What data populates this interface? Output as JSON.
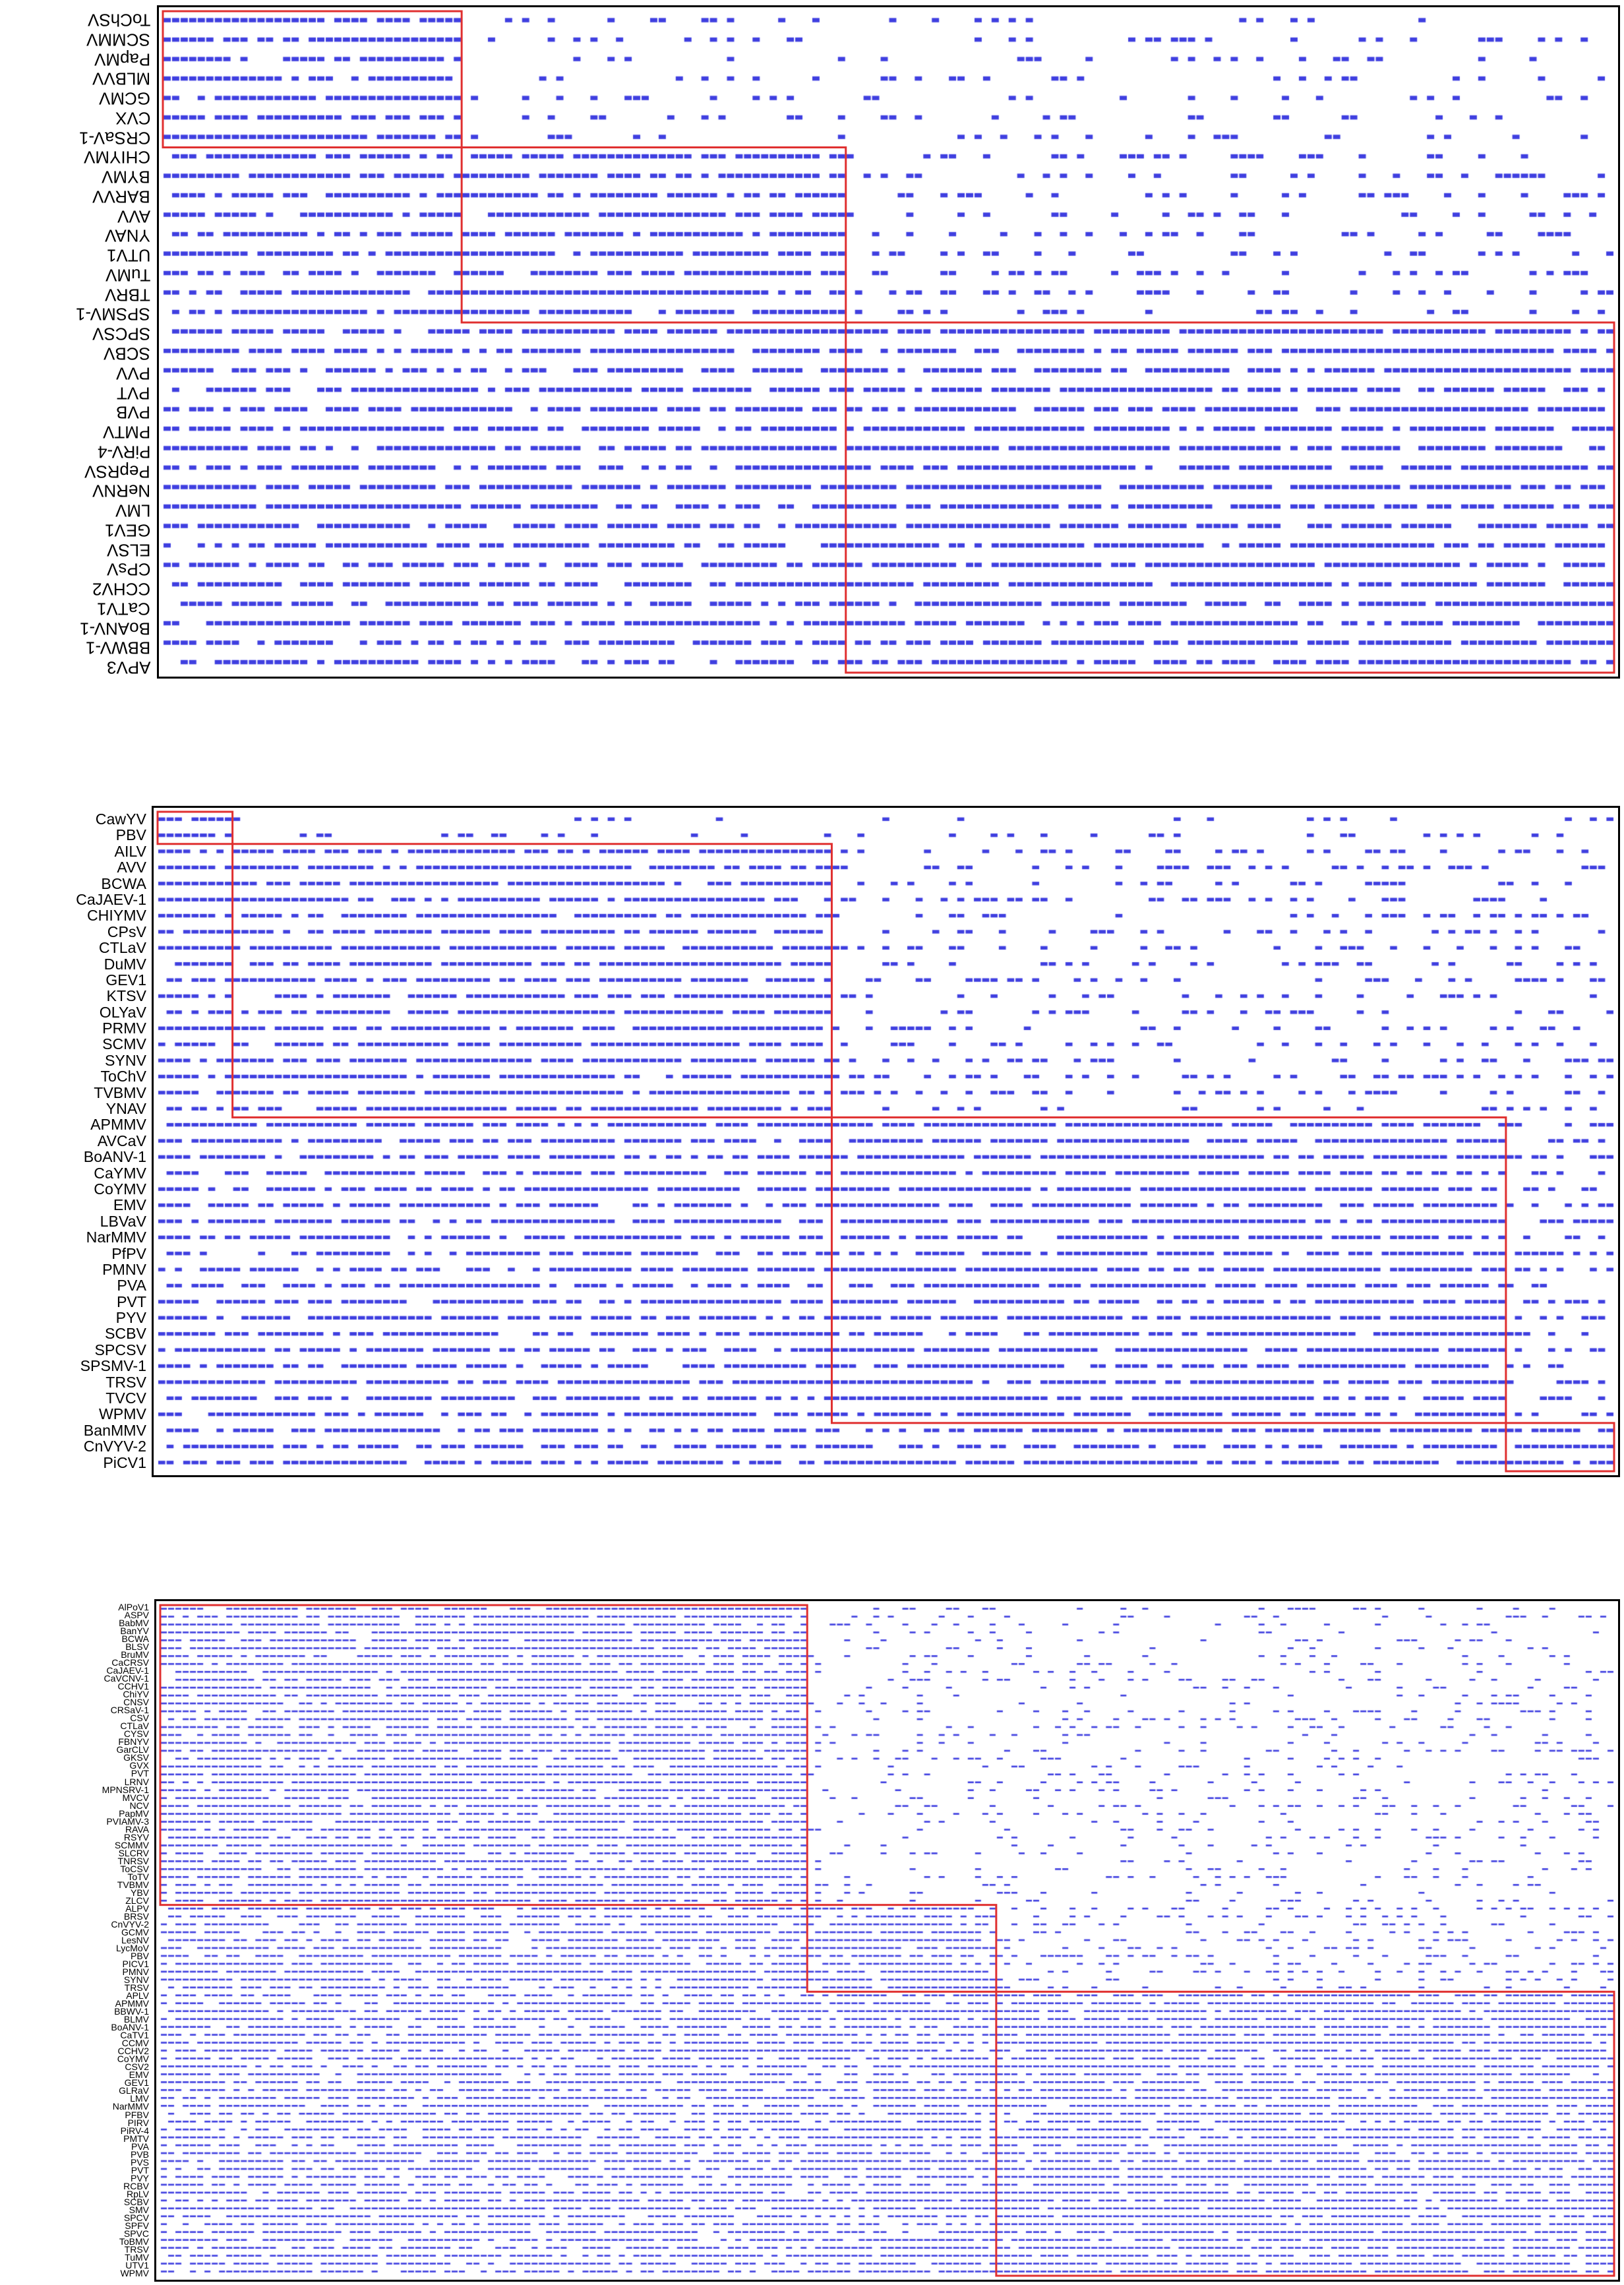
{
  "colors": {
    "mark": "#3f3fe0",
    "box": "#e03030",
    "frame": "#000000"
  },
  "panels": [
    {
      "id": "top",
      "labels_flipped": true,
      "labels": [
        "ToChSV",
        "SCMMV",
        "PapMV",
        "MLBVV",
        "GCMV",
        "CVX",
        "CRSaV-1",
        "CHIYMV",
        "BYMV",
        "BARVV",
        "AVV",
        "YNAV",
        "UTV1",
        "TuMV",
        "TBRV",
        "SPSMV-1",
        "SPCSV",
        "SCBV",
        "PVV",
        "PVT",
        "PVB",
        "PMTV",
        "PiRV-4",
        "PepRSV",
        "NeRNV",
        "LMV",
        "GEV1",
        "ELSV",
        "CPsV",
        "CCHV2",
        "CaTV1",
        "BoANV-1",
        "BBWV-1",
        "APV3"
      ],
      "groups": [
        7,
        9,
        18
      ]
    },
    {
      "id": "middle",
      "labels_flipped": false,
      "labels": [
        "CawYV",
        "PBV",
        "AILV",
        "AVV",
        "BCWA",
        "CaJAEV-1",
        "CHIYMV",
        "CPsV",
        "CTLaV",
        "DuMV",
        "GEV1",
        "KTSV",
        "OLYaV",
        "PRMV",
        "SCMV",
        "SYNV",
        "ToChV",
        "TVBMV",
        "YNAV",
        "APMMV",
        "AVCaV",
        "BoANV-1",
        "CaYMV",
        "CoYMV",
        "EMV",
        "LBVaV",
        "NarMMV",
        "PfPV",
        "PMNV",
        "PVA",
        "PVT",
        "PYV",
        "SCBV",
        "SPCSV",
        "SPSMV-1",
        "TRSV",
        "TVCV",
        "WPMV",
        "BanMMV",
        "CnVYV-2",
        "PiCV1"
      ],
      "groups": [
        2,
        17,
        19,
        3
      ]
    },
    {
      "id": "bottom",
      "labels_flipped": false,
      "labels": [
        "AlPoV1",
        "ASPV",
        "BabMV",
        "BanYV",
        "BCWA",
        "BLSV",
        "BruMV",
        "CaCRSV",
        "CaJAEV-1",
        "CaVCNV-1",
        "CCHV1",
        "ChiYV",
        "CNSV",
        "CRSaV-1",
        "CSV",
        "CTLaV",
        "CYSV",
        "FBNYV",
        "GarCLV",
        "GKSV",
        "GVX",
        "PVT",
        "LRNV",
        "MPNSRV-1",
        "MVCV",
        "NCV",
        "PapMV",
        "PVIAMV-3",
        "RAVA",
        "RSYV",
        "SCMMV",
        "SLCRV",
        "TNRSV",
        "ToCSV",
        "ToTV",
        "TVBMV",
        "YBV",
        "ZLCV",
        "ALPV",
        "BRSV",
        "CnVYV-2",
        "GCMV",
        "LesNV",
        "LycMoV",
        "PBV",
        "PICV1",
        "PMNV",
        "SYNV",
        "TRSV",
        "APLV",
        "APMMV",
        "BBWV-1",
        "BLMV",
        "BoANV-1",
        "CaTV1",
        "CCMV",
        "CCHV2",
        "CoYMV",
        "CSV2",
        "EMV",
        "GEV1",
        "GLRaV",
        "LMV",
        "NarMMV",
        "PFBV",
        "PIRV",
        "PiRV-4",
        "PMTV",
        "PVA",
        "PVB",
        "PVS",
        "PVT",
        "PVY",
        "RCBV",
        "RpLV",
        "SCBV",
        "SMV",
        "SPCV",
        "SPFV",
        "SPVC",
        "ToBMV",
        "TRSV",
        "TuMV",
        "UTV1",
        "WPMV"
      ],
      "groups": [
        38,
        11,
        36
      ]
    }
  ]
}
